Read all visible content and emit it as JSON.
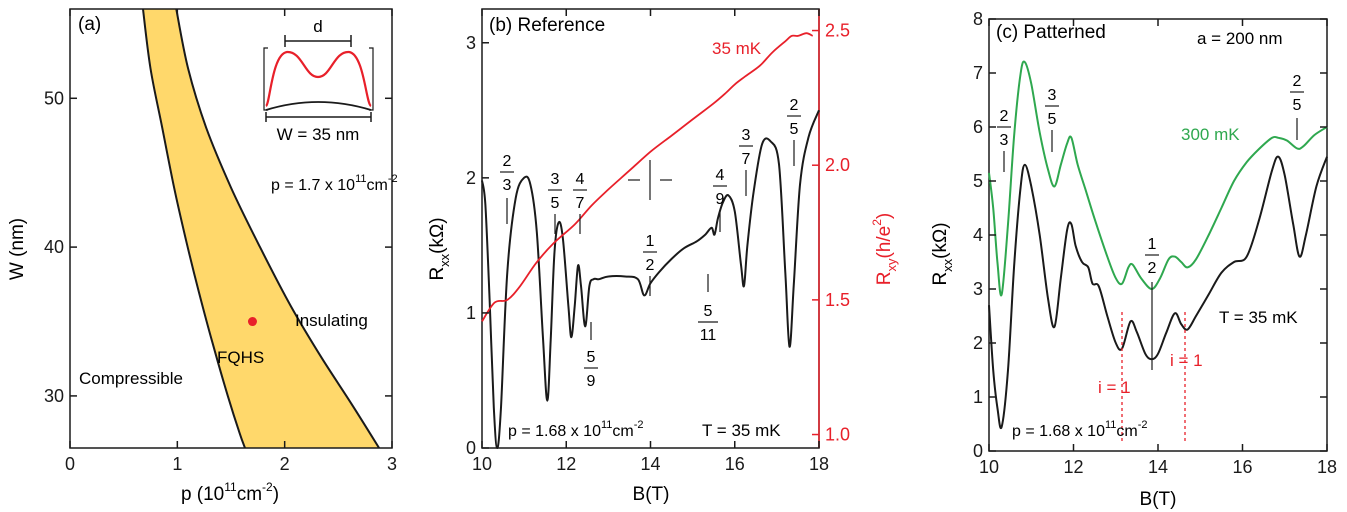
{
  "chart_data": [
    {
      "panel": "a",
      "type": "area",
      "panel_label": "(a)",
      "xlabel": "p (10",
      "xlabel_sup": "11",
      "xlabel_mid": "cm",
      "xlabel_sup2": "-2",
      "xlabel_end": ")",
      "ylabel": "W (nm)",
      "xlim": [
        0,
        3
      ],
      "ylim": [
        26.5,
        56
      ],
      "xticks": [
        0,
        1,
        2,
        3
      ],
      "yticks": [
        30,
        40,
        50
      ],
      "xtick_labels": [
        "0",
        "1",
        "2",
        "3"
      ],
      "ytick_labels": [
        "30",
        "40",
        "50"
      ],
      "region_left_boundary": [
        [
          0.68,
          56
        ],
        [
          0.75,
          52
        ],
        [
          0.86,
          48
        ],
        [
          0.97,
          44
        ],
        [
          1.08,
          40.5
        ],
        [
          1.2,
          37
        ],
        [
          1.33,
          33.5
        ],
        [
          1.47,
          30
        ],
        [
          1.58,
          27.5
        ],
        [
          1.63,
          26.5
        ]
      ],
      "region_right_boundary": [
        [
          0.99,
          56
        ],
        [
          1.1,
          52
        ],
        [
          1.27,
          48
        ],
        [
          1.5,
          44
        ],
        [
          1.77,
          40
        ],
        [
          2.06,
          36
        ],
        [
          2.35,
          32.5
        ],
        [
          2.62,
          29.5
        ],
        [
          2.88,
          26.5
        ]
      ],
      "region_color": "#ffd86b",
      "point": {
        "x": 1.7,
        "y": 35,
        "color": "#e8202a"
      },
      "labels": {
        "compressible": "Compressible",
        "fqhs": "FQHS",
        "insulating": "Insulating"
      },
      "density_label": "p = 1.7 x 10",
      "density_sup": "11",
      "density_unit": "cm",
      "density_unit_sup": "-2",
      "inset": {
        "d_label": "d",
        "w_label": "W = 35 nm"
      }
    },
    {
      "panel": "b",
      "type": "line",
      "panel_label": "(b) Reference",
      "xlabel": "B(T)",
      "ylabel": "R",
      "ylabel_sub": "xx",
      "ylabel_unit": "(kΩ)",
      "y2label": "R",
      "y2label_sub": "xy",
      "y2label_unit": "(h/e",
      "y2label_sup": "2",
      "y2label_end": ")",
      "xlim": [
        10,
        18
      ],
      "ylim": [
        0,
        3.25
      ],
      "y2lim": [
        0.95,
        2.58
      ],
      "xticks": [
        10,
        12,
        14,
        16,
        18
      ],
      "xtick_labels": [
        "10",
        "12",
        "14",
        "16",
        "18"
      ],
      "yticks": [
        0,
        1,
        2,
        3
      ],
      "ytick_labels": [
        "0",
        "1",
        "2",
        "3"
      ],
      "y2ticks": [
        1.0,
        1.5,
        2.0,
        2.5
      ],
      "y2tick_labels": [
        "1.0",
        "1.5",
        "2.0",
        "2.5"
      ],
      "series": [
        {
          "name": "",
          "color": "#1a1a1a",
          "points": [
            [
              10,
              1.98
            ],
            [
              10.08,
              1.8
            ],
            [
              10.18,
              1.1
            ],
            [
              10.28,
              0.3
            ],
            [
              10.36,
              0.0
            ],
            [
              10.45,
              0.3
            ],
            [
              10.6,
              1.3
            ],
            [
              10.8,
              1.85
            ],
            [
              11.0,
              2.0
            ],
            [
              11.15,
              1.95
            ],
            [
              11.3,
              1.6
            ],
            [
              11.45,
              0.8
            ],
            [
              11.55,
              0.35
            ],
            [
              11.63,
              0.8
            ],
            [
              11.72,
              1.45
            ],
            [
              11.82,
              1.67
            ],
            [
              11.92,
              1.55
            ],
            [
              12.05,
              1.05
            ],
            [
              12.12,
              0.82
            ],
            [
              12.2,
              1.05
            ],
            [
              12.28,
              1.35
            ],
            [
              12.35,
              1.2
            ],
            [
              12.45,
              0.9
            ],
            [
              12.55,
              1.2
            ],
            [
              12.65,
              1.25
            ],
            [
              12.78,
              1.25
            ],
            [
              13.0,
              1.27
            ],
            [
              13.4,
              1.27
            ],
            [
              13.7,
              1.25
            ],
            [
              13.85,
              1.13
            ],
            [
              14.0,
              1.22
            ],
            [
              14.2,
              1.3
            ],
            [
              14.5,
              1.4
            ],
            [
              14.8,
              1.48
            ],
            [
              15.1,
              1.53
            ],
            [
              15.3,
              1.58
            ],
            [
              15.45,
              1.63
            ],
            [
              15.52,
              1.58
            ],
            [
              15.6,
              1.7
            ],
            [
              15.72,
              1.82
            ],
            [
              15.85,
              1.87
            ],
            [
              16.0,
              1.75
            ],
            [
              16.15,
              1.35
            ],
            [
              16.22,
              1.2
            ],
            [
              16.3,
              1.5
            ],
            [
              16.45,
              1.9
            ],
            [
              16.65,
              2.25
            ],
            [
              16.85,
              2.27
            ],
            [
              17.05,
              2.1
            ],
            [
              17.2,
              1.3
            ],
            [
              17.3,
              0.75
            ],
            [
              17.4,
              1.2
            ],
            [
              17.55,
              1.95
            ],
            [
              17.75,
              2.3
            ],
            [
              18.0,
              2.5
            ]
          ]
        },
        {
          "name": "35 mK",
          "color": "#e8202a",
          "axis": "right",
          "points": [
            [
              10,
              1.42
            ],
            [
              10.3,
              1.49
            ],
            [
              10.6,
              1.5
            ],
            [
              10.9,
              1.55
            ],
            [
              11.3,
              1.64
            ],
            [
              11.7,
              1.71
            ],
            [
              12.2,
              1.78
            ],
            [
              12.6,
              1.85
            ],
            [
              13.0,
              1.91
            ],
            [
              13.5,
              1.98
            ],
            [
              14.0,
              2.05
            ],
            [
              14.5,
              2.11
            ],
            [
              15.0,
              2.17
            ],
            [
              15.5,
              2.23
            ],
            [
              15.8,
              2.27
            ],
            [
              16.0,
              2.3
            ],
            [
              16.25,
              2.33
            ],
            [
              16.6,
              2.37
            ],
            [
              16.9,
              2.42
            ],
            [
              17.2,
              2.46
            ],
            [
              17.35,
              2.48
            ],
            [
              17.5,
              2.48
            ],
            [
              17.7,
              2.49
            ],
            [
              17.85,
              2.48
            ]
          ]
        }
      ],
      "annotations": {
        "f23": [
          "2",
          "3"
        ],
        "f35": [
          "3",
          "5"
        ],
        "f47": [
          "4",
          "7"
        ],
        "f59": [
          "5",
          "9"
        ],
        "f12": [
          "1",
          "2"
        ],
        "f511": [
          "5",
          "11"
        ],
        "f49": [
          "4",
          "9"
        ],
        "f37": [
          "3",
          "7"
        ],
        "f25": [
          "2",
          "5"
        ],
        "temp_series": "35 mK",
        "density": "p = 1.68 x 10",
        "density_sup": "11",
        "density_unit": "cm",
        "density_unit_sup": "-2",
        "temperature": "T = 35 mK"
      }
    },
    {
      "panel": "c",
      "type": "line",
      "panel_label": "(c) Patterned",
      "period_label": "a = 200 nm",
      "xlabel": "B(T)",
      "ylabel": "R",
      "ylabel_sub": "xx",
      "ylabel_unit": "(kΩ)",
      "xlim": [
        10,
        18
      ],
      "ylim": [
        0,
        8
      ],
      "xticks": [
        10,
        12,
        14,
        16,
        18
      ],
      "xtick_labels": [
        "10",
        "12",
        "14",
        "16",
        "18"
      ],
      "yticks": [
        0,
        1,
        2,
        3,
        4,
        5,
        6,
        7,
        8
      ],
      "ytick_labels": [
        "0",
        "1",
        "2",
        "3",
        "4",
        "5",
        "6",
        "7",
        "8"
      ],
      "series": [
        {
          "name": "35 mK",
          "color": "#1a1a1a",
          "points": [
            [
              10,
              2.7
            ],
            [
              10.1,
              1.5
            ],
            [
              10.2,
              0.8
            ],
            [
              10.3,
              0.45
            ],
            [
              10.45,
              1.5
            ],
            [
              10.6,
              3.5
            ],
            [
              10.75,
              4.9
            ],
            [
              10.85,
              5.3
            ],
            [
              11.0,
              4.9
            ],
            [
              11.2,
              4.0
            ],
            [
              11.4,
              2.8
            ],
            [
              11.55,
              2.3
            ],
            [
              11.7,
              3.2
            ],
            [
              11.85,
              4.1
            ],
            [
              11.95,
              4.2
            ],
            [
              12.05,
              3.8
            ],
            [
              12.2,
              3.5
            ],
            [
              12.35,
              3.4
            ],
            [
              12.45,
              3.1
            ],
            [
              12.6,
              3.05
            ],
            [
              12.8,
              2.5
            ],
            [
              13.0,
              2.0
            ],
            [
              13.15,
              1.9
            ],
            [
              13.35,
              2.4
            ],
            [
              13.5,
              2.2
            ],
            [
              13.7,
              1.8
            ],
            [
              13.85,
              1.7
            ],
            [
              14.0,
              1.8
            ],
            [
              14.2,
              2.2
            ],
            [
              14.4,
              2.55
            ],
            [
              14.55,
              2.35
            ],
            [
              14.7,
              2.25
            ],
            [
              14.9,
              2.5
            ],
            [
              15.2,
              2.9
            ],
            [
              15.5,
              3.3
            ],
            [
              15.8,
              3.5
            ],
            [
              16.1,
              3.6
            ],
            [
              16.4,
              4.3
            ],
            [
              16.7,
              5.2
            ],
            [
              16.85,
              5.45
            ],
            [
              17.0,
              5.1
            ],
            [
              17.2,
              4.2
            ],
            [
              17.35,
              3.6
            ],
            [
              17.5,
              4.0
            ],
            [
              17.75,
              4.9
            ],
            [
              18.0,
              5.45
            ]
          ]
        },
        {
          "name": "300 mK",
          "color": "#2fa84f",
          "points": [
            [
              10,
              5.15
            ],
            [
              10.1,
              4.5
            ],
            [
              10.2,
              3.5
            ],
            [
              10.3,
              2.9
            ],
            [
              10.45,
              4.2
            ],
            [
              10.6,
              5.9
            ],
            [
              10.75,
              7.0
            ],
            [
              10.85,
              7.2
            ],
            [
              11.0,
              6.8
            ],
            [
              11.2,
              5.9
            ],
            [
              11.4,
              5.2
            ],
            [
              11.55,
              4.9
            ],
            [
              11.7,
              5.3
            ],
            [
              11.85,
              5.7
            ],
            [
              11.95,
              5.8
            ],
            [
              12.1,
              5.3
            ],
            [
              12.3,
              4.8
            ],
            [
              12.5,
              4.3
            ],
            [
              12.8,
              3.6
            ],
            [
              13.0,
              3.2
            ],
            [
              13.15,
              3.1
            ],
            [
              13.3,
              3.4
            ],
            [
              13.4,
              3.45
            ],
            [
              13.6,
              3.2
            ],
            [
              13.85,
              3.0
            ],
            [
              14.05,
              3.2
            ],
            [
              14.25,
              3.55
            ],
            [
              14.4,
              3.6
            ],
            [
              14.55,
              3.5
            ],
            [
              14.7,
              3.4
            ],
            [
              14.9,
              3.55
            ],
            [
              15.2,
              4.0
            ],
            [
              15.5,
              4.5
            ],
            [
              15.8,
              5.0
            ],
            [
              16.1,
              5.35
            ],
            [
              16.4,
              5.6
            ],
            [
              16.7,
              5.8
            ],
            [
              16.85,
              5.8
            ],
            [
              17.05,
              5.75
            ],
            [
              17.3,
              5.6
            ],
            [
              17.45,
              5.65
            ],
            [
              17.7,
              5.85
            ],
            [
              18.0,
              6.0
            ]
          ]
        }
      ],
      "annotations": {
        "f23": [
          "2",
          "3"
        ],
        "f35": [
          "3",
          "5"
        ],
        "f12": [
          "1",
          "2"
        ],
        "f25": [
          "2",
          "5"
        ],
        "i_left": "i = 1",
        "i_right": "i = 1",
        "temperature": "T = 35 mK",
        "density": "p = 1.68 x 10",
        "density_sup": "11",
        "density_unit": "cm",
        "density_unit_sup": "-2"
      }
    }
  ]
}
